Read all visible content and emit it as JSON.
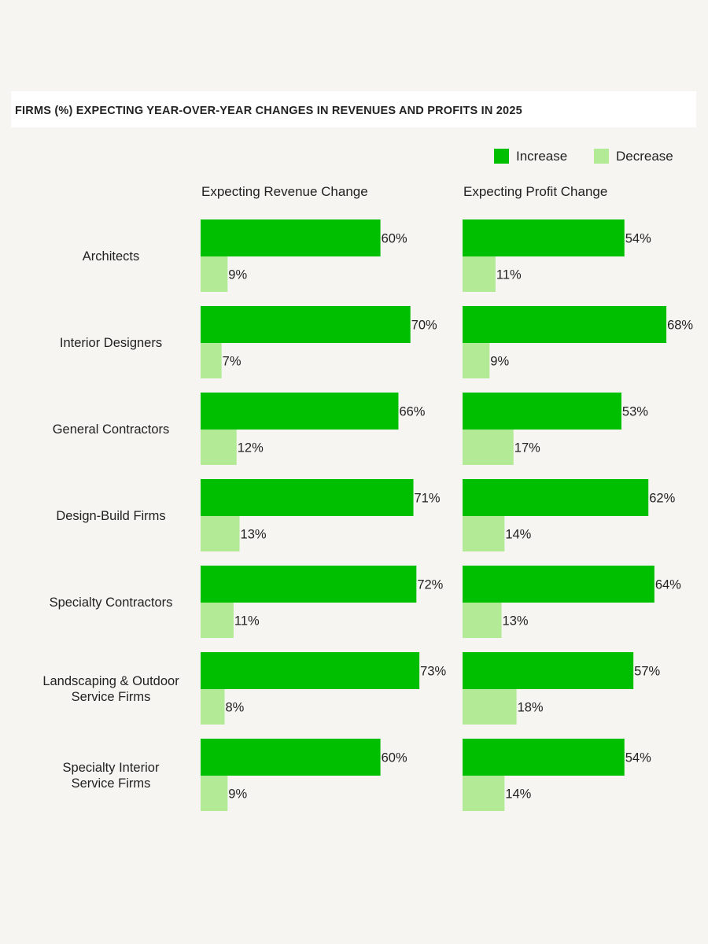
{
  "title": "FIRMS (%) EXPECTING YEAR-OVER-YEAR CHANGES IN REVENUES AND PROFITS IN 2025",
  "colors": {
    "increase": "#00bf00",
    "decrease": "#b3ea96",
    "text": "#222222"
  },
  "chart_data": {
    "type": "bar",
    "orientation": "horizontal",
    "title": "FIRMS (%) EXPECTING YEAR-OVER-YEAR CHANGES IN REVENUES AND PROFITS IN 2025",
    "legend": {
      "placement": "top-right",
      "entries": [
        "Increase",
        "Decrease"
      ]
    },
    "value_suffix": "%",
    "categories": [
      [
        "Architects"
      ],
      [
        "Interior Designers"
      ],
      [
        "General Contractors"
      ],
      [
        "Design-Build Firms"
      ],
      [
        "Specialty Contractors"
      ],
      [
        "Landscaping & Outdoor",
        "Service Firms"
      ],
      [
        "Specialty Interior",
        "Service Firms"
      ]
    ],
    "panels": [
      {
        "title": "Expecting Revenue Change",
        "series": [
          {
            "name": "Increase",
            "values": [
              60,
              70,
              66,
              71,
              72,
              73,
              60
            ]
          },
          {
            "name": "Decrease",
            "values": [
              9,
              7,
              12,
              13,
              11,
              8,
              9
            ]
          }
        ]
      },
      {
        "title": "Expecting Profit Change",
        "series": [
          {
            "name": "Increase",
            "values": [
              54,
              68,
              53,
              62,
              64,
              57,
              54
            ]
          },
          {
            "name": "Decrease",
            "values": [
              11,
              9,
              17,
              14,
              13,
              18,
              14
            ]
          }
        ]
      }
    ]
  }
}
